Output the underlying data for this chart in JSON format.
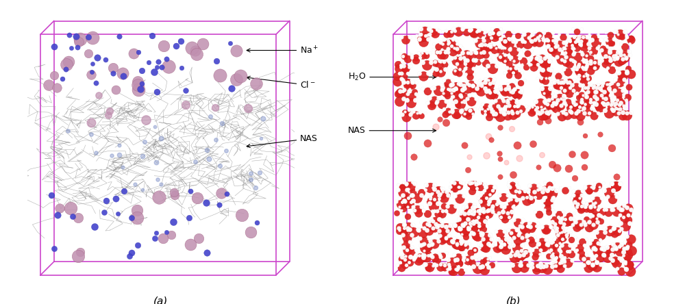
{
  "fig_width": 10.0,
  "fig_height": 4.44,
  "bg_color": "#ffffff",
  "box_color_left": "#cc44cc",
  "box_color_right": "#cc44cc",
  "label_a": "(a)",
  "label_b": "(b)",
  "panel_a_labels": [
    "Na⁺",
    "Cl⁻",
    "NAS"
  ],
  "panel_b_labels": [
    "H₂O",
    "NAS"
  ],
  "na_color": "#c090b0",
  "cl_color": "#4444cc",
  "nas_wire_color": "#909090",
  "water_red": "#dd2222",
  "water_white": "#ffffff"
}
